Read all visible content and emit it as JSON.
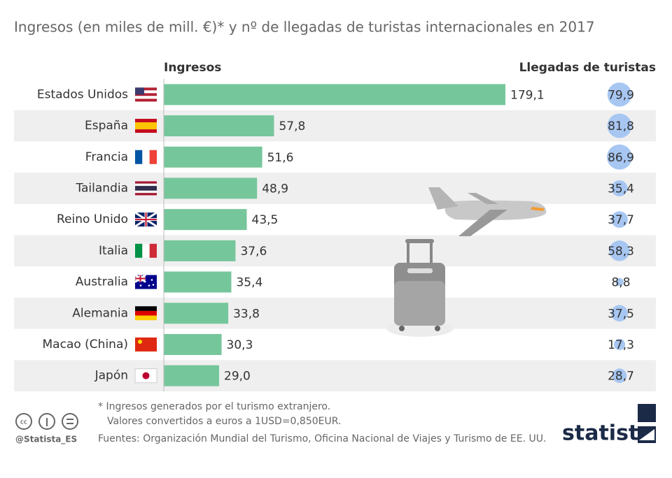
{
  "chart_data": {
    "type": "bar",
    "title": "Ingresos (en miles de mill. €)* y nº de llegadas de turistas internacionales en 2017",
    "categories": [
      "Estados Unidos",
      "España",
      "Francia",
      "Tailandia",
      "Reino Unido",
      "Italia",
      "Australia",
      "Alemania",
      "Macao (China)",
      "Japón"
    ],
    "series": [
      {
        "name": "Ingresos",
        "color": "#76c69b",
        "values": [
          179.1,
          57.8,
          51.6,
          48.9,
          43.5,
          37.6,
          35.4,
          33.8,
          30.3,
          29.0
        ],
        "value_labels": [
          "179,1",
          "57,8",
          "51,6",
          "48,9",
          "43,5",
          "37,6",
          "35,4",
          "33,8",
          "30,3",
          "29,0"
        ]
      },
      {
        "name": "Llegadas de turistas",
        "color": "#a7c7f2",
        "values": [
          79.9,
          81.8,
          86.9,
          35.4,
          37.7,
          58.3,
          8.8,
          37.5,
          17.3,
          28.7
        ],
        "value_labels": [
          "79,9",
          "81,8",
          "86,9",
          "35,4",
          "37,7",
          "58,3",
          "8,8",
          "37,5",
          "17,3",
          "28,7"
        ]
      }
    ],
    "footnote": [
      "* Ingresos generados por el turismo extranjero.",
      "Valores convertidos a euros a 1USD=0,850EUR."
    ],
    "sources": "Fuentes: Organización Mundial del Turismo, Oficina Nacional de Viajes y Turismo de EE. UU.",
    "handle": "@Statista_ES",
    "brand": "statista"
  }
}
